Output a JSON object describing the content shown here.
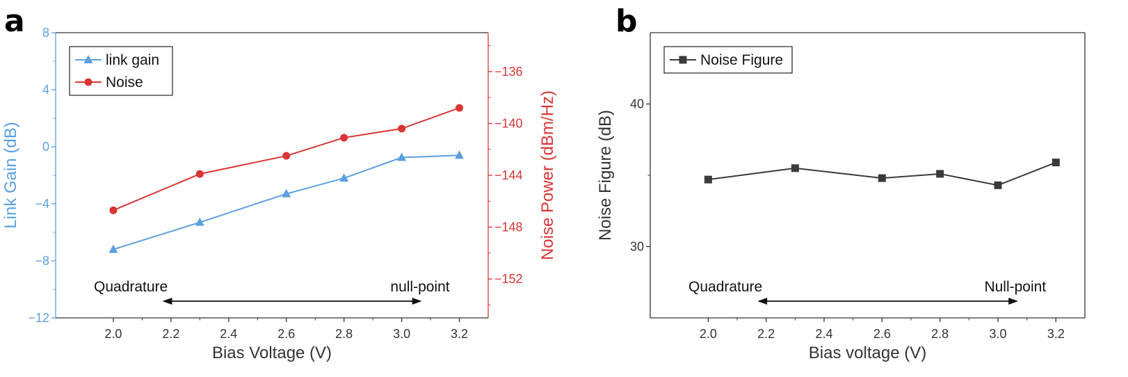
{
  "colors": {
    "gain": "#5b9fe0",
    "noise": "#d93535",
    "nf": "#3a3a3a",
    "axis": "#333333"
  },
  "panels": {
    "a": {
      "label": "a"
    },
    "b": {
      "label": "b"
    }
  },
  "chart_data": [
    {
      "type": "line",
      "panel": "a",
      "xlabel": "Bias Voltage (V)",
      "ylabel": "Link Gain (dB)",
      "y2label": "Noise Power (dBm/Hz)",
      "xlim": [
        1.8,
        3.3
      ],
      "ylim": [
        -12,
        8
      ],
      "y2lim": [
        -155,
        -133
      ],
      "xticks": [
        2.0,
        2.2,
        2.4,
        2.6,
        2.8,
        3.0,
        3.2
      ],
      "xtick_labels": [
        "2.0",
        "2.2",
        "2.4",
        "2.6",
        "2.8",
        "3.0",
        "3.2"
      ],
      "yticks": [
        -12,
        -8,
        -4,
        0,
        4,
        8
      ],
      "ytick_labels": [
        "−12",
        "−8",
        "−4",
        "0",
        "4",
        "8"
      ],
      "y2ticks": [
        -152,
        -148,
        -144,
        -140,
        -136
      ],
      "y2tick_labels": [
        "−152",
        "−148",
        "−144",
        "−140",
        "−136"
      ],
      "legend_position": "top-left",
      "series": [
        {
          "name": "link gain",
          "axis": "left",
          "marker": "triangle",
          "color": "#5b9fe0",
          "x": [
            2.0,
            2.3,
            2.6,
            2.8,
            3.0,
            3.2
          ],
          "y": [
            -7.2,
            -5.3,
            -3.3,
            -2.2,
            -0.75,
            -0.6
          ]
        },
        {
          "name": "Noise",
          "axis": "right",
          "marker": "circle",
          "color": "#d93535",
          "x": [
            2.0,
            2.3,
            2.6,
            2.8,
            3.0,
            3.2
          ],
          "y": [
            -146.7,
            -143.9,
            -142.5,
            -141.1,
            -140.4,
            -138.8
          ]
        }
      ],
      "annotations": {
        "left": "Quadrature",
        "right": "null-point",
        "arrow_x": [
          2.17,
          3.07
        ]
      }
    },
    {
      "type": "line",
      "panel": "b",
      "xlabel": "Bias voltage (V)",
      "ylabel": "Noise Figure (dB)",
      "xlim": [
        1.8,
        3.3
      ],
      "ylim": [
        25,
        45
      ],
      "xticks": [
        2.0,
        2.2,
        2.4,
        2.6,
        2.8,
        3.0,
        3.2
      ],
      "xtick_labels": [
        "2.0",
        "2.2",
        "2.4",
        "2.6",
        "2.8",
        "3.0",
        "3.2"
      ],
      "yticks": [
        30,
        40
      ],
      "ytick_labels": [
        "30",
        "40"
      ],
      "legend_position": "top-left",
      "series": [
        {
          "name": "Noise Figure",
          "marker": "square",
          "color": "#3a3a3a",
          "x": [
            2.0,
            2.3,
            2.6,
            2.8,
            3.0,
            3.2
          ],
          "y": [
            34.7,
            35.5,
            34.8,
            35.1,
            34.3,
            35.9
          ]
        }
      ],
      "annotations": {
        "left": "Quadrature",
        "right": "Null-point",
        "arrow_x": [
          2.17,
          3.07
        ]
      }
    }
  ]
}
